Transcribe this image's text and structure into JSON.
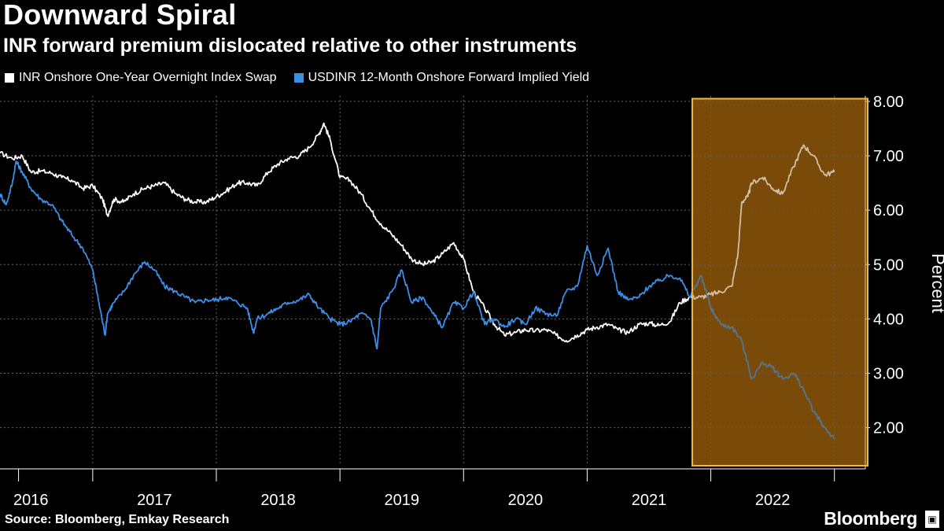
{
  "header": {
    "title": "Downward Spiral",
    "subtitle": "INR forward premium dislocated relative to other instruments"
  },
  "legend": {
    "items": [
      {
        "label": "INR Onshore One-Year Overnight Index Swap",
        "color": "#ffffff"
      },
      {
        "label": "USDINR 12-Month Onshore Forward Implied Yield",
        "color": "#3b8fe8"
      }
    ]
  },
  "footer": {
    "source": "Source: Bloomberg, Emkay Research",
    "brand": "Bloomberg"
  },
  "chart_data": {
    "type": "line",
    "title": "Downward Spiral",
    "subtitle": "INR forward premium dislocated relative to other instruments",
    "ylabel": "Percent",
    "xlabel": "",
    "xlim": [
      2015.75,
      2022.75
    ],
    "ylim": [
      1.3,
      8.1
    ],
    "yticks": [
      2,
      3,
      4,
      5,
      6,
      7,
      8
    ],
    "ytick_labels": [
      "2.00",
      "3.00",
      "4.00",
      "5.00",
      "6.00",
      "7.00",
      "8.00"
    ],
    "xticks": [
      2016,
      2017,
      2018,
      2019,
      2020,
      2021,
      2022
    ],
    "xtick_labels": [
      "2016",
      "2017",
      "2018",
      "2019",
      "2020",
      "2021",
      "2022"
    ],
    "grid": true,
    "highlight": {
      "x_range": [
        2021.35,
        2022.75
      ],
      "y_range": [
        1.3,
        8.05
      ],
      "fill": "#7a4a08",
      "border": "#f0b840"
    },
    "series": [
      {
        "name": "INR Onshore One-Year Overnight Index Swap",
        "color": "#ffffff",
        "x": [
          2015.75,
          2015.85,
          2015.93,
          2016.0,
          2016.08,
          2016.17,
          2016.25,
          2016.33,
          2016.42,
          2016.5,
          2016.58,
          2016.62,
          2016.67,
          2016.75,
          2016.83,
          2016.92,
          2017.0,
          2017.08,
          2017.17,
          2017.25,
          2017.33,
          2017.42,
          2017.5,
          2017.58,
          2017.67,
          2017.75,
          2017.83,
          2017.92,
          2018.0,
          2018.08,
          2018.17,
          2018.25,
          2018.33,
          2018.37,
          2018.42,
          2018.5,
          2018.58,
          2018.67,
          2018.75,
          2018.83,
          2018.92,
          2019.0,
          2019.08,
          2019.17,
          2019.25,
          2019.33,
          2019.42,
          2019.5,
          2019.58,
          2019.67,
          2019.75,
          2019.83,
          2019.92,
          2020.0,
          2020.08,
          2020.17,
          2020.25,
          2020.33,
          2020.42,
          2020.5,
          2020.58,
          2020.67,
          2020.75,
          2020.83,
          2020.92,
          2021.0,
          2021.08,
          2021.17,
          2021.25,
          2021.33,
          2021.42,
          2021.5,
          2021.58,
          2021.67,
          2021.72,
          2021.75,
          2021.8,
          2021.83,
          2021.92,
          2022.0,
          2022.08,
          2022.17,
          2022.25,
          2022.33,
          2022.42,
          2022.5
        ],
        "values": [
          7.05,
          6.95,
          7.0,
          6.7,
          6.72,
          6.68,
          6.6,
          6.55,
          6.4,
          6.45,
          6.2,
          5.9,
          6.2,
          6.15,
          6.3,
          6.4,
          6.45,
          6.5,
          6.3,
          6.2,
          6.15,
          6.15,
          6.25,
          6.35,
          6.5,
          6.5,
          6.45,
          6.7,
          6.85,
          6.95,
          7.0,
          7.15,
          7.4,
          7.6,
          7.3,
          6.6,
          6.55,
          6.3,
          6.0,
          5.75,
          5.55,
          5.35,
          5.1,
          5.0,
          5.05,
          5.2,
          5.4,
          5.1,
          4.5,
          4.2,
          3.9,
          3.7,
          3.75,
          3.8,
          3.78,
          3.8,
          3.7,
          3.6,
          3.7,
          3.8,
          3.85,
          3.9,
          3.8,
          3.75,
          3.9,
          3.92,
          3.88,
          3.95,
          4.3,
          4.4,
          4.4,
          4.45,
          4.5,
          4.6,
          5.2,
          6.15,
          6.25,
          6.5,
          6.6,
          6.4,
          6.3,
          6.8,
          7.2,
          7.0,
          6.65,
          6.7
        ]
      },
      {
        "name": "USDINR 12-Month Onshore Forward Implied Yield",
        "color": "#3b8fe8",
        "x": [
          2015.75,
          2015.8,
          2015.85,
          2015.88,
          2015.93,
          2016.0,
          2016.08,
          2016.17,
          2016.25,
          2016.33,
          2016.42,
          2016.5,
          2016.55,
          2016.6,
          2016.62,
          2016.67,
          2016.75,
          2016.83,
          2016.92,
          2017.0,
          2017.08,
          2017.17,
          2017.25,
          2017.33,
          2017.42,
          2017.5,
          2017.58,
          2017.67,
          2017.75,
          2017.8,
          2017.83,
          2017.92,
          2018.0,
          2018.08,
          2018.17,
          2018.25,
          2018.33,
          2018.42,
          2018.5,
          2018.58,
          2018.67,
          2018.75,
          2018.8,
          2018.83,
          2018.92,
          2019.0,
          2019.08,
          2019.17,
          2019.25,
          2019.33,
          2019.42,
          2019.5,
          2019.58,
          2019.67,
          2019.75,
          2019.83,
          2019.92,
          2020.0,
          2020.08,
          2020.17,
          2020.25,
          2020.33,
          2020.42,
          2020.5,
          2020.58,
          2020.67,
          2020.75,
          2020.83,
          2020.92,
          2021.0,
          2021.08,
          2021.17,
          2021.25,
          2021.33,
          2021.42,
          2021.5,
          2021.58,
          2021.67,
          2021.75,
          2021.83,
          2021.92,
          2022.0,
          2022.08,
          2022.17,
          2022.25,
          2022.33,
          2022.42,
          2022.5
        ],
        "values": [
          6.3,
          6.1,
          6.5,
          6.9,
          6.7,
          6.4,
          6.2,
          6.1,
          5.8,
          5.55,
          5.3,
          4.9,
          4.3,
          3.7,
          4.1,
          4.3,
          4.5,
          4.8,
          5.05,
          4.9,
          4.6,
          4.5,
          4.4,
          4.3,
          4.35,
          4.35,
          4.4,
          4.3,
          4.2,
          3.75,
          4.0,
          4.1,
          4.2,
          4.3,
          4.35,
          4.45,
          4.2,
          4.0,
          3.9,
          3.95,
          4.1,
          4.0,
          3.45,
          4.2,
          4.5,
          4.9,
          4.3,
          4.4,
          4.1,
          3.85,
          4.3,
          4.2,
          4.5,
          3.9,
          4.0,
          3.85,
          4.0,
          3.9,
          4.2,
          4.1,
          4.05,
          4.5,
          4.6,
          5.35,
          4.8,
          5.3,
          4.5,
          4.35,
          4.4,
          4.6,
          4.7,
          4.8,
          4.75,
          4.4,
          4.8,
          4.2,
          3.9,
          3.85,
          3.6,
          2.9,
          3.2,
          3.1,
          2.9,
          3.0,
          2.7,
          2.3,
          2.0,
          1.8
        ]
      }
    ]
  }
}
